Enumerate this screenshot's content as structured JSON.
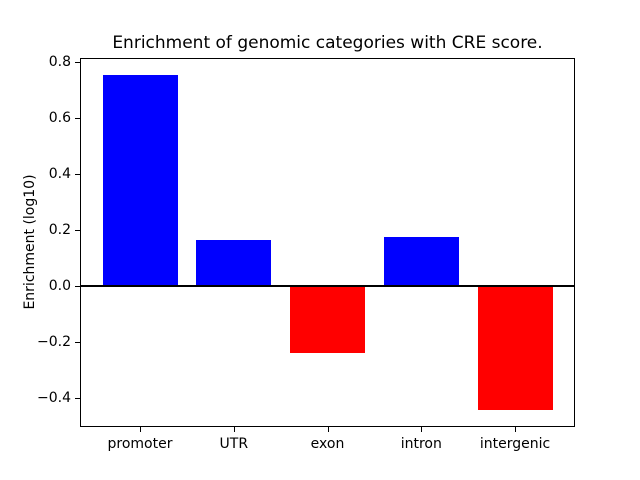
{
  "chart_data": {
    "type": "bar",
    "title": "Enrichment of genomic categories with CRE score.",
    "xlabel": "",
    "ylabel": "Enrichment (log10)",
    "categories": [
      "promoter",
      "UTR",
      "exon",
      "intron",
      "intergenic"
    ],
    "values": [
      0.755,
      0.167,
      -0.24,
      0.176,
      -0.442
    ],
    "bar_colors": [
      "#0000ff",
      "#0000ff",
      "#ff0000",
      "#0000ff",
      "#ff0000"
    ],
    "positive_color": "#0000ff",
    "negative_color": "#ff0000",
    "bar_width": 0.8,
    "xlim": [
      -0.64,
      4.64
    ],
    "ylim": [
      -0.502,
      0.815
    ],
    "ytick_values": [
      0.8,
      0.6,
      0.4,
      0.2,
      0.0,
      -0.2,
      -0.4
    ],
    "ytick_labels": [
      "0.8",
      "0.6",
      "0.4",
      "0.2",
      "0.0",
      "−0.2",
      "−0.4"
    ],
    "grid": false,
    "zero_line_color": "#000000",
    "spine_color": "#000000",
    "background_color": "#ffffff"
  }
}
